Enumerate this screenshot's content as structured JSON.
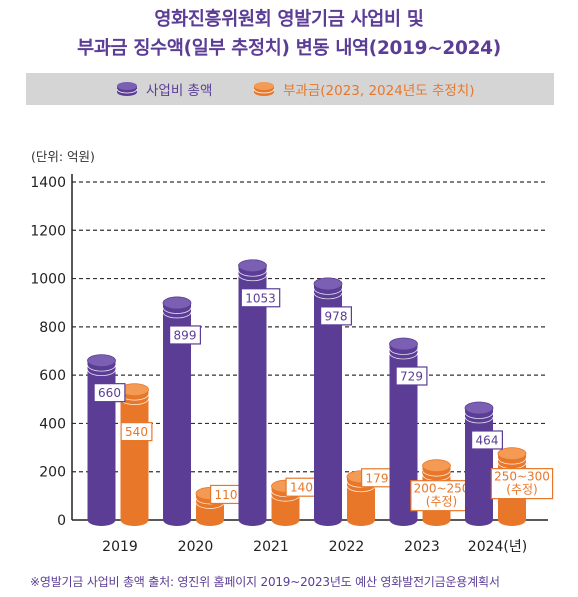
{
  "title_line1": "영화진흥위원회 영발기금 사업비 및",
  "title_line2": "부과금 징수액(일부 추정치) 변동 내역(2019~2024)",
  "legend": {
    "series1": "사업비 총액",
    "series2": "부과금(2023, 2024년도 추정치)"
  },
  "unit_label": "(단위: 억원)",
  "footnote": "※영발기금 사업비 총액 출처: 영진위 홈페이지 2019~2023년도 예산 영화발전기금운용계획서",
  "colors": {
    "purple": "#5b3d96",
    "orange": "#e8772a",
    "legend_bg": "#d5d5d5"
  },
  "chart_data": {
    "type": "bar",
    "categories": [
      "2019",
      "2020",
      "2021",
      "2022",
      "2023",
      "2024(년)"
    ],
    "series": [
      {
        "name": "사업비 총액",
        "values": [
          660,
          899,
          1053,
          978,
          729,
          464
        ],
        "labels": [
          "660",
          "899",
          "1053",
          "978",
          "729",
          "464"
        ]
      },
      {
        "name": "부과금(2023, 2024년도 추정치)",
        "values": [
          540,
          110,
          140,
          179,
          225,
          275
        ],
        "labels": [
          "540",
          "110",
          "140",
          "179",
          "200~250",
          "250~300"
        ],
        "sublabels": [
          "",
          "",
          "",
          "",
          "(추정)",
          "(추정)"
        ]
      }
    ],
    "ylim": [
      0,
      1400
    ],
    "yticks": [
      0,
      200,
      400,
      600,
      800,
      1000,
      1200,
      1400
    ],
    "grid": true,
    "legend_position": "top"
  }
}
